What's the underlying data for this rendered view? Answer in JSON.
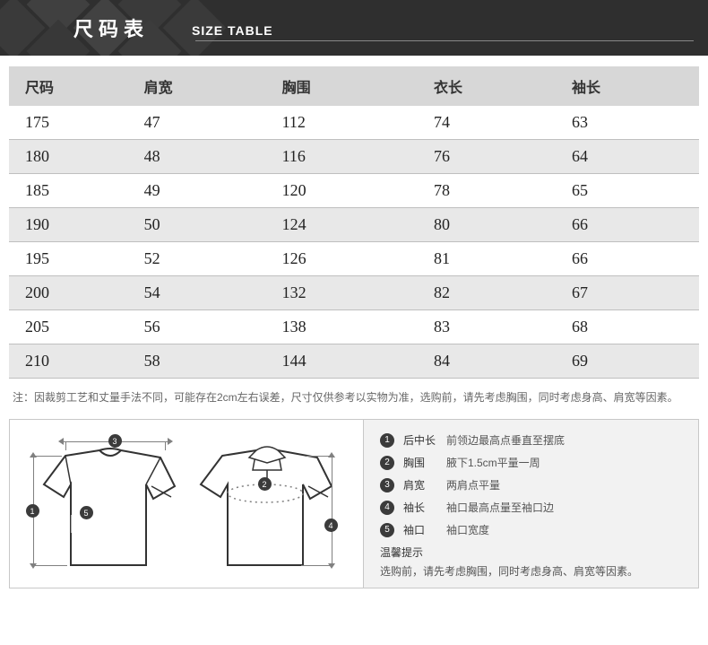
{
  "banner": {
    "title_cn": "尺码表",
    "title_en": "SIZE TABLE"
  },
  "table": {
    "columns": [
      "尺码",
      "肩宽",
      "胸围",
      "衣长",
      "袖长"
    ],
    "rows": [
      [
        "175",
        "47",
        "112",
        "74",
        "63"
      ],
      [
        "180",
        "48",
        "116",
        "76",
        "64"
      ],
      [
        "185",
        "49",
        "120",
        "78",
        "65"
      ],
      [
        "190",
        "50",
        "124",
        "80",
        "66"
      ],
      [
        "195",
        "52",
        "126",
        "81",
        "66"
      ],
      [
        "200",
        "54",
        "132",
        "82",
        "67"
      ],
      [
        "205",
        "56",
        "138",
        "83",
        "68"
      ],
      [
        "210",
        "58",
        "144",
        "84",
        "69"
      ]
    ],
    "header_bg": "#d7d7d7",
    "alt_bg": "#e8e8e8",
    "border_color": "#bfbfbf"
  },
  "note": "注：因裁剪工艺和丈量手法不同，可能存在2cm左右误差，尺寸仅供参考以实物为准，选购前，请先考虑胸围，同时考虑身高、肩宽等因素。",
  "measure": {
    "items": [
      {
        "n": "1",
        "label": "后中长",
        "desc": "前领边最高点垂直至摆底"
      },
      {
        "n": "2",
        "label": "胸围",
        "desc": "腋下1.5cm平量一周"
      },
      {
        "n": "3",
        "label": "肩宽",
        "desc": "两肩点平量"
      },
      {
        "n": "4",
        "label": "袖长",
        "desc": "袖口最高点量至袖口边"
      },
      {
        "n": "5",
        "label": "袖口",
        "desc": "袖口宽度"
      }
    ],
    "tip_head": "温馨提示",
    "tip_body": "选购前，请先考虑胸围，同时考虑身高、肩宽等因素。"
  },
  "colors": {
    "banner_bg": "#2f2f2f",
    "panel_bg": "#f2f2f2"
  }
}
